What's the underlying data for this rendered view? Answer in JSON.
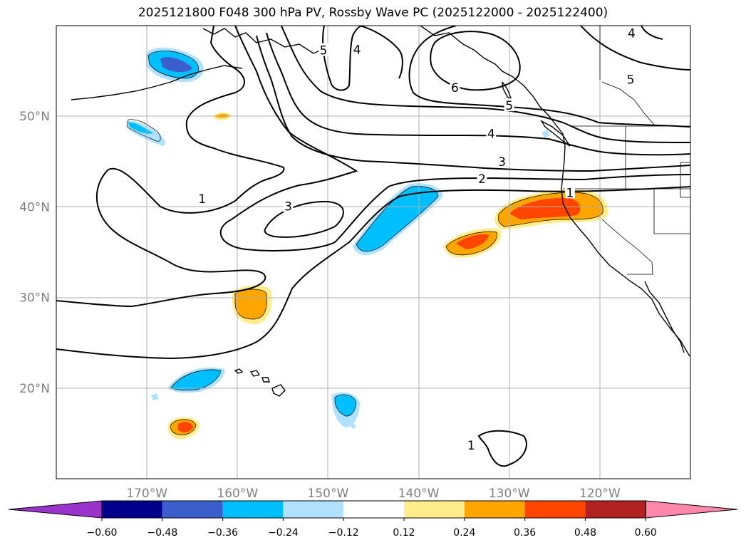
{
  "title": "2025121800 F048 300 hPa PV, Rossby Wave PC (2025122000 - 2025122400)",
  "map": {
    "lon_ticks": [
      {
        "lon": -170,
        "label": "170°W"
      },
      {
        "lon": -160,
        "label": "160°W"
      },
      {
        "lon": -150,
        "label": "150°W"
      },
      {
        "lon": -140,
        "label": "140°W"
      },
      {
        "lon": -130,
        "label": "130°W"
      },
      {
        "lon": -120,
        "label": "120°W"
      }
    ],
    "lat_ticks": [
      {
        "lat": 20,
        "label": "20°N"
      },
      {
        "lat": 30,
        "label": "30°N"
      },
      {
        "lat": 40,
        "label": "40°N"
      },
      {
        "lat": 50,
        "label": "50°N"
      }
    ],
    "lon_range": [
      -180,
      -110
    ],
    "lat_range": [
      10,
      60
    ],
    "grid": true
  },
  "contour_labels": [
    {
      "text": "1",
      "lon": -163.9,
      "lat": 40.8
    },
    {
      "text": "3",
      "lon": -154.4,
      "lat": 40.0
    },
    {
      "text": "2",
      "lon": -133.0,
      "lat": 43.0
    },
    {
      "text": "3",
      "lon": -130.8,
      "lat": 44.9
    },
    {
      "text": "4",
      "lon": -132.0,
      "lat": 48.0
    },
    {
      "text": "5",
      "lon": -130.0,
      "lat": 51.1
    },
    {
      "text": "6",
      "lon": -136.0,
      "lat": 53.1
    },
    {
      "text": "5",
      "lon": -150.5,
      "lat": 57.2
    },
    {
      "text": "4",
      "lon": -146.8,
      "lat": 57.3
    },
    {
      "text": "5",
      "lon": -116.6,
      "lat": 54.0
    },
    {
      "text": "1",
      "lon": -123.3,
      "lat": 41.5
    },
    {
      "text": "1",
      "lon": -134.2,
      "lat": 13.6
    },
    {
      "text": "4",
      "lon": -116.5,
      "lat": 59.1
    }
  ],
  "colorbar": {
    "ticks": [
      "−0.60",
      "−0.48",
      "−0.36",
      "−0.24",
      "−0.12",
      "0.12",
      "0.24",
      "0.36",
      "0.48",
      "0.60"
    ],
    "colors": [
      "#9933cc",
      "#00008b",
      "#3a5fcd",
      "#00bfff",
      "#b0e2ff",
      "#ffffff",
      "#ffec8b",
      "#ffa500",
      "#ff4500",
      "#b22222",
      "#ff88aa"
    ]
  }
}
